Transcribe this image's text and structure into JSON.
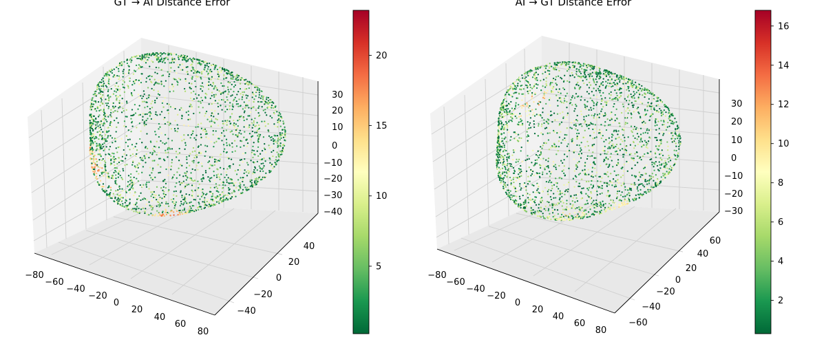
{
  "chart_data": [
    {
      "type": "scatter",
      "title": "GT → AI Distance Error",
      "x_ticks": [
        "−80",
        "−60",
        "−40",
        "−20",
        "0",
        "20",
        "40",
        "60",
        "80"
      ],
      "y_ticks": [
        "−40",
        "−20",
        "0",
        "20",
        "40"
      ],
      "z_ticks": [
        "30",
        "20",
        "10",
        "0",
        "−10",
        "−20",
        "−30",
        "−40"
      ],
      "xlim": [
        -80,
        80
      ],
      "ylim": [
        -55,
        55
      ],
      "zlim": [
        -42,
        36
      ],
      "colorbar": {
        "min": 0.2,
        "max": 23.2,
        "ticks": [
          "5",
          "10",
          "15",
          "20"
        ],
        "tick_values": [
          5,
          10,
          15,
          20
        ],
        "cmap": "RdYlGn_r"
      },
      "shape_radii": [
        75,
        52,
        34
      ],
      "hotspots": [
        {
          "x": -38,
          "y": -28,
          "z": -8,
          "value": 21
        },
        {
          "x": 22,
          "y": -32,
          "z": -14,
          "value": 22
        },
        {
          "x": 28,
          "y": -50,
          "z": -38,
          "value": 15
        }
      ]
    },
    {
      "type": "scatter",
      "title": "AI → GT Distance Error",
      "x_ticks": [
        "−80",
        "−60",
        "−40",
        "−20",
        "0",
        "20",
        "40",
        "60",
        "80"
      ],
      "y_ticks": [
        "−60",
        "−40",
        "−20",
        "0",
        "20",
        "40",
        "60"
      ],
      "z_ticks": [
        "30",
        "20",
        "10",
        "0",
        "−10",
        "−20",
        "−30"
      ],
      "xlim": [
        -80,
        80
      ],
      "ylim": [
        -65,
        65
      ],
      "zlim": [
        -33,
        38
      ],
      "colorbar": {
        "min": 0.3,
        "max": 16.8,
        "ticks": [
          "2",
          "4",
          "6",
          "8",
          "10",
          "12",
          "14",
          "16"
        ],
        "tick_values": [
          2,
          4,
          6,
          8,
          10,
          12,
          14,
          16
        ],
        "cmap": "RdYlGn_r"
      },
      "shape_radii": [
        70,
        60,
        30
      ],
      "hotspots": [
        {
          "x": -22,
          "y": -20,
          "z": 18,
          "value": 15
        },
        {
          "x": 40,
          "y": -10,
          "z": -12,
          "value": 14
        },
        {
          "x": 30,
          "y": -52,
          "z": -24,
          "value": 14
        }
      ]
    }
  ]
}
